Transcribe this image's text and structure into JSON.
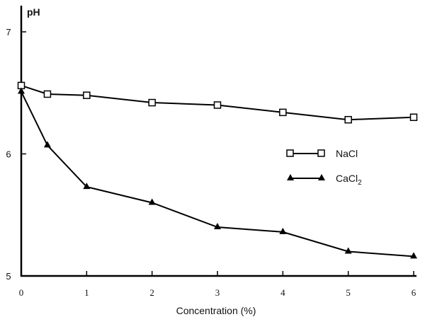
{
  "chart_data": {
    "type": "line",
    "title": "",
    "xlabel": "Concentration (%)",
    "ylabel": "pH",
    "xlim": [
      0,
      6
    ],
    "ylim": [
      5,
      7
    ],
    "xticks": [
      "0",
      "1",
      "2",
      "3",
      "4",
      "5",
      "6"
    ],
    "yticks": [
      "5",
      "6",
      "7"
    ],
    "grid": false,
    "legend_placement": "right-middle",
    "series": [
      {
        "name": "NaCl",
        "marker": "open-square",
        "x": [
          0,
          0.4,
          1,
          2,
          3,
          4,
          5,
          6
        ],
        "y": [
          6.56,
          6.49,
          6.48,
          6.42,
          6.4,
          6.34,
          6.28,
          6.3
        ]
      },
      {
        "name": "CaCl2",
        "marker": "filled-triangle",
        "x": [
          0,
          0.4,
          1,
          2,
          3,
          4,
          5,
          6
        ],
        "y": [
          6.51,
          6.07,
          5.73,
          5.6,
          5.4,
          5.36,
          5.2,
          5.16
        ]
      }
    ]
  }
}
